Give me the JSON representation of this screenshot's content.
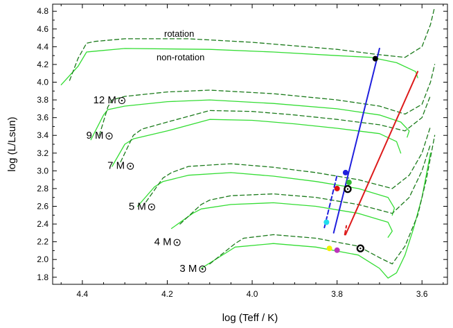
{
  "chart_data": {
    "type": "line",
    "xlabel": "log (Teff  / K)",
    "ylabel": "log (L/Lsun)",
    "xlim": [
      4.47,
      3.54
    ],
    "ylim": [
      1.72,
      4.88
    ],
    "x_ticks": [
      4.4,
      4.2,
      4.0,
      3.8,
      3.6
    ],
    "y_ticks": [
      1.8,
      2.0,
      2.2,
      2.4,
      2.6,
      2.8,
      3.0,
      3.2,
      3.4,
      3.6,
      3.8,
      4.0,
      4.2,
      4.4,
      4.6,
      4.8
    ],
    "x_axis_reversed": true,
    "annotations": [
      "rotation",
      "non-rotation"
    ],
    "series": [
      {
        "label": "12 M☉",
        "mass": 12,
        "style": "solid",
        "color": "#33dd33",
        "points": [
          [
            4.45,
            3.97
          ],
          [
            4.41,
            4.18
          ],
          [
            4.39,
            4.34
          ],
          [
            4.37,
            4.35
          ],
          [
            4.3,
            4.38
          ],
          [
            4.1,
            4.37
          ],
          [
            3.95,
            4.34
          ],
          [
            3.8,
            4.3
          ],
          [
            3.72,
            4.28
          ],
          [
            3.66,
            4.22
          ],
          [
            3.615,
            4.12
          ],
          [
            3.61,
            4.05
          ]
        ]
      },
      {
        "label": "12 M☉",
        "mass": 12,
        "style": "dashed",
        "color": "#1a7a1a",
        "points": [
          [
            4.43,
            4.02
          ],
          [
            4.41,
            4.27
          ],
          [
            4.39,
            4.44
          ],
          [
            4.37,
            4.46
          ],
          [
            4.3,
            4.49
          ],
          [
            4.15,
            4.49
          ],
          [
            4.0,
            4.45
          ],
          [
            3.9,
            4.41
          ],
          [
            3.8,
            4.37
          ],
          [
            3.7,
            4.31
          ],
          [
            3.64,
            4.28
          ],
          [
            3.6,
            4.4
          ],
          [
            3.58,
            4.65
          ],
          [
            3.57,
            4.85
          ]
        ]
      },
      {
        "label": "9 M☉",
        "mass": 9,
        "style": "solid",
        "color": "#33dd33",
        "points": [
          [
            4.38,
            3.35
          ],
          [
            4.35,
            3.63
          ],
          [
            4.34,
            3.69
          ],
          [
            4.3,
            3.73
          ],
          [
            4.2,
            3.78
          ],
          [
            4.1,
            3.8
          ],
          [
            3.95,
            3.76
          ],
          [
            3.8,
            3.7
          ],
          [
            3.7,
            3.63
          ],
          [
            3.65,
            3.55
          ],
          [
            3.63,
            3.45
          ],
          [
            3.635,
            3.38
          ]
        ]
      },
      {
        "label": "9 M☉",
        "mass": 9,
        "style": "dashed",
        "color": "#1a7a1a",
        "points": [
          [
            4.36,
            3.4
          ],
          [
            4.34,
            3.72
          ],
          [
            4.33,
            3.8
          ],
          [
            4.3,
            3.84
          ],
          [
            4.2,
            3.89
          ],
          [
            4.1,
            3.91
          ],
          [
            3.95,
            3.87
          ],
          [
            3.8,
            3.8
          ],
          [
            3.7,
            3.73
          ],
          [
            3.64,
            3.64
          ],
          [
            3.6,
            3.75
          ],
          [
            3.58,
            4.0
          ],
          [
            3.57,
            4.2
          ]
        ]
      },
      {
        "label": "7 M☉",
        "mass": 7,
        "style": "solid",
        "color": "#33dd33",
        "points": [
          [
            4.33,
            3.05
          ],
          [
            4.3,
            3.3
          ],
          [
            4.28,
            3.36
          ],
          [
            4.2,
            3.45
          ],
          [
            4.1,
            3.58
          ],
          [
            4.0,
            3.57
          ],
          [
            3.9,
            3.53
          ],
          [
            3.8,
            3.48
          ],
          [
            3.7,
            3.42
          ],
          [
            3.66,
            3.33
          ],
          [
            3.65,
            3.2
          ]
        ]
      },
      {
        "label": "7 M☉",
        "mass": 7,
        "style": "dashed",
        "color": "#1a7a1a",
        "points": [
          [
            4.31,
            3.1
          ],
          [
            4.28,
            3.4
          ],
          [
            4.26,
            3.47
          ],
          [
            4.2,
            3.55
          ],
          [
            4.1,
            3.68
          ],
          [
            4.0,
            3.67
          ],
          [
            3.9,
            3.63
          ],
          [
            3.8,
            3.58
          ],
          [
            3.7,
            3.52
          ],
          [
            3.64,
            3.45
          ],
          [
            3.6,
            3.6
          ],
          [
            3.58,
            3.85
          ]
        ]
      },
      {
        "label": "5 M☉",
        "mass": 5,
        "style": "solid",
        "color": "#33dd33",
        "points": [
          [
            4.27,
            2.6
          ],
          [
            4.23,
            2.82
          ],
          [
            4.21,
            2.88
          ],
          [
            4.15,
            2.95
          ],
          [
            4.05,
            2.98
          ],
          [
            3.95,
            2.94
          ],
          [
            3.85,
            2.88
          ],
          [
            3.75,
            2.8
          ],
          [
            3.68,
            2.7
          ],
          [
            3.665,
            2.58
          ],
          [
            3.67,
            2.5
          ]
        ]
      },
      {
        "label": "5 M☉",
        "mass": 5,
        "style": "dashed",
        "color": "#1a7a1a",
        "points": [
          [
            4.25,
            2.65
          ],
          [
            4.21,
            2.92
          ],
          [
            4.19,
            2.98
          ],
          [
            4.15,
            3.05
          ],
          [
            4.05,
            3.08
          ],
          [
            3.95,
            3.04
          ],
          [
            3.85,
            2.98
          ],
          [
            3.75,
            2.9
          ],
          [
            3.67,
            2.8
          ],
          [
            3.63,
            2.95
          ],
          [
            3.6,
            3.2
          ],
          [
            3.58,
            3.5
          ]
        ]
      },
      {
        "label": "4 M☉",
        "mass": 4,
        "style": "solid",
        "color": "#33dd33",
        "points": [
          [
            4.19,
            2.35
          ],
          [
            4.14,
            2.52
          ],
          [
            4.12,
            2.57
          ],
          [
            4.05,
            2.62
          ],
          [
            3.95,
            2.64
          ],
          [
            3.85,
            2.6
          ],
          [
            3.75,
            2.52
          ],
          [
            3.68,
            2.42
          ],
          [
            3.67,
            2.32
          ],
          [
            3.68,
            2.25
          ]
        ]
      },
      {
        "label": "4 M☉",
        "mass": 4,
        "style": "dashed",
        "color": "#1a7a1a",
        "points": [
          [
            4.17,
            2.4
          ],
          [
            4.12,
            2.62
          ],
          [
            4.1,
            2.67
          ],
          [
            4.05,
            2.72
          ],
          [
            3.95,
            2.74
          ],
          [
            3.85,
            2.7
          ],
          [
            3.75,
            2.62
          ],
          [
            3.67,
            2.52
          ],
          [
            3.63,
            2.7
          ],
          [
            3.6,
            3.0
          ],
          [
            3.58,
            3.3
          ]
        ]
      },
      {
        "label": "3 M☉",
        "mass": 3,
        "style": "solid",
        "color": "#33dd33",
        "points": [
          [
            4.12,
            1.9
          ],
          [
            4.06,
            2.08
          ],
          [
            4.04,
            2.14
          ],
          [
            3.95,
            2.18
          ],
          [
            3.85,
            2.14
          ],
          [
            3.75,
            2.05
          ],
          [
            3.7,
            1.9
          ],
          [
            3.68,
            1.79
          ],
          [
            3.66,
            1.85
          ],
          [
            3.64,
            2.05
          ],
          [
            3.62,
            2.35
          ],
          [
            3.6,
            2.7
          ],
          [
            3.58,
            3.2
          ]
        ]
      },
      {
        "label": "3 M☉",
        "mass": 3,
        "style": "dashed",
        "color": "#1a7a1a",
        "points": [
          [
            4.1,
            1.95
          ],
          [
            4.04,
            2.18
          ],
          [
            4.02,
            2.24
          ],
          [
            3.95,
            2.28
          ],
          [
            3.85,
            2.24
          ],
          [
            3.75,
            2.15
          ],
          [
            3.7,
            2.02
          ],
          [
            3.67,
            1.95
          ],
          [
            3.64,
            2.15
          ],
          [
            3.61,
            2.5
          ],
          [
            3.59,
            2.9
          ],
          [
            3.57,
            3.4
          ]
        ]
      },
      {
        "label": "",
        "style": "solid",
        "color": "#1f1fdd",
        "points": [
          [
            3.808,
            2.3
          ],
          [
            3.7,
            4.38
          ]
        ]
      },
      {
        "label": "",
        "style": "dashed",
        "color": "#1f1fdd",
        "points": [
          [
            3.83,
            2.36
          ],
          [
            3.8,
            2.95
          ]
        ]
      },
      {
        "label": "",
        "style": "solid",
        "color": "#dd1a1a",
        "points": [
          [
            3.78,
            2.28
          ],
          [
            3.61,
            4.12
          ]
        ]
      },
      {
        "label": "",
        "style": "dashed",
        "color": "#dd1a1a",
        "points": [
          [
            3.782,
            2.28
          ],
          [
            3.778,
            2.38
          ]
        ]
      }
    ],
    "markers": [
      {
        "x": 3.71,
        "y": 4.265,
        "color": "#000000",
        "style": "filled"
      },
      {
        "x": 3.78,
        "y": 2.98,
        "color": "#1f1fdd",
        "style": "filled"
      },
      {
        "x": 3.772,
        "y": 2.87,
        "color": "#33bb33",
        "style": "filled"
      },
      {
        "x": 3.8,
        "y": 2.8,
        "color": "#e01010",
        "style": "filled"
      },
      {
        "x": 3.825,
        "y": 2.42,
        "color": "#22ddee",
        "style": "filled"
      },
      {
        "x": 3.818,
        "y": 2.125,
        "color": "#f2f000",
        "style": "filled"
      },
      {
        "x": 3.8,
        "y": 2.105,
        "color": "#bb33bb",
        "style": "filled"
      },
      {
        "x": 3.775,
        "y": 2.795,
        "color": "#000000",
        "style": "sun"
      },
      {
        "x": 3.745,
        "y": 2.125,
        "color": "#000000",
        "style": "sun"
      }
    ],
    "mass_labels": [
      {
        "text": "12 M",
        "x": 4.32,
        "y": 3.8
      },
      {
        "text": "9 M",
        "x": 4.35,
        "y": 3.4
      },
      {
        "text": "7 M",
        "x": 4.3,
        "y": 3.06
      },
      {
        "text": "5 M",
        "x": 4.25,
        "y": 2.6
      },
      {
        "text": "4 M",
        "x": 4.19,
        "y": 2.2
      },
      {
        "text": "3 M",
        "x": 4.13,
        "y": 1.9
      }
    ]
  }
}
